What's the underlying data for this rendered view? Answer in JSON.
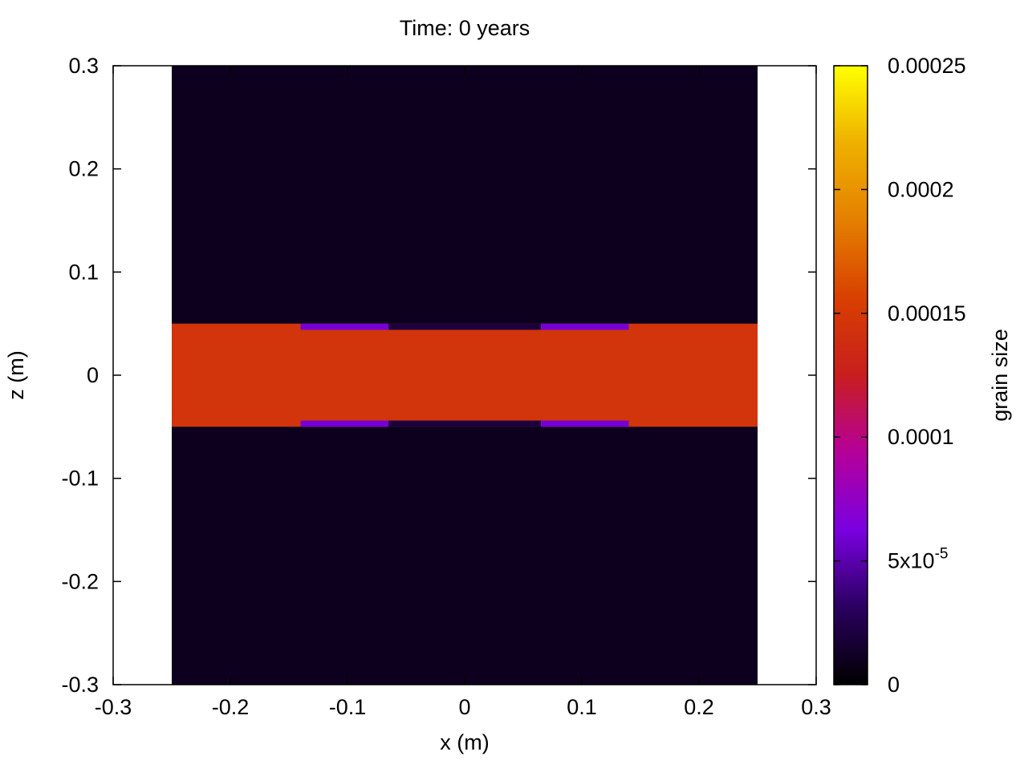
{
  "chart_data": {
    "type": "heatmap",
    "title": "Time: 0 years",
    "xlabel": "x (m)",
    "ylabel": "z (m)",
    "xlim": [
      -0.3,
      0.3
    ],
    "ylim": [
      -0.3,
      0.3
    ],
    "x_ticks": [
      -0.3,
      -0.2,
      -0.1,
      0,
      0.1,
      0.2,
      0.3
    ],
    "x_tick_labels": [
      "-0.3",
      "-0.2",
      "-0.1",
      "0",
      "0.1",
      "0.2",
      "0.3"
    ],
    "y_ticks": [
      -0.3,
      -0.2,
      -0.1,
      0,
      0.1,
      0.2,
      0.3
    ],
    "y_tick_labels": [
      "-0.3",
      "-0.2",
      "-0.1",
      "0",
      "0.1",
      "0.2",
      "0.3"
    ],
    "colorbar": {
      "label": "grain size",
      "range": [
        0,
        0.00025
      ],
      "ticks": [
        0,
        5e-05,
        0.0001,
        0.00015,
        0.0002,
        0.00025
      ],
      "tick_labels": [
        "0",
        "5x10-5",
        "0.0001",
        "0.00015",
        "0.0002",
        "0.00025"
      ],
      "colormap": [
        "#000000",
        "#2a0060",
        "#7a00e0",
        "#b5009a",
        "#c81e1e",
        "#d84000",
        "#e48000",
        "#efb000",
        "#ffff00"
      ]
    },
    "regions": [
      {
        "name": "matrix",
        "x": [
          -0.25,
          0.25
        ],
        "z": [
          -0.3,
          0.3
        ],
        "value": 1e-05
      },
      {
        "name": "layer",
        "x": [
          -0.25,
          0.25
        ],
        "z": [
          -0.05,
          0.05
        ],
        "value": 0.000145
      },
      {
        "name": "layer-core",
        "x": [
          -0.06,
          0.06
        ],
        "z": [
          -0.044,
          0.044
        ],
        "value": 0.000145
      },
      {
        "name": "edge-upper-left",
        "x": [
          -0.14,
          -0.065
        ],
        "z": [
          0.044,
          0.05
        ],
        "value": 6e-05
      },
      {
        "name": "edge-upper-right",
        "x": [
          0.065,
          0.14
        ],
        "z": [
          0.044,
          0.05
        ],
        "value": 6e-05
      },
      {
        "name": "edge-lower-left",
        "x": [
          -0.14,
          -0.065
        ],
        "z": [
          -0.05,
          -0.044
        ],
        "value": 6e-05
      },
      {
        "name": "edge-lower-right",
        "x": [
          0.065,
          0.14
        ],
        "z": [
          -0.05,
          -0.044
        ],
        "value": 6e-05
      },
      {
        "name": "edge-upper-center",
        "x": [
          -0.065,
          0.065
        ],
        "z": [
          0.044,
          0.05
        ],
        "value": 2e-05
      },
      {
        "name": "edge-lower-center",
        "x": [
          -0.065,
          0.065
        ],
        "z": [
          -0.05,
          -0.044
        ],
        "value": 2e-05
      }
    ],
    "grid": false,
    "legend": "colorbar-right"
  }
}
